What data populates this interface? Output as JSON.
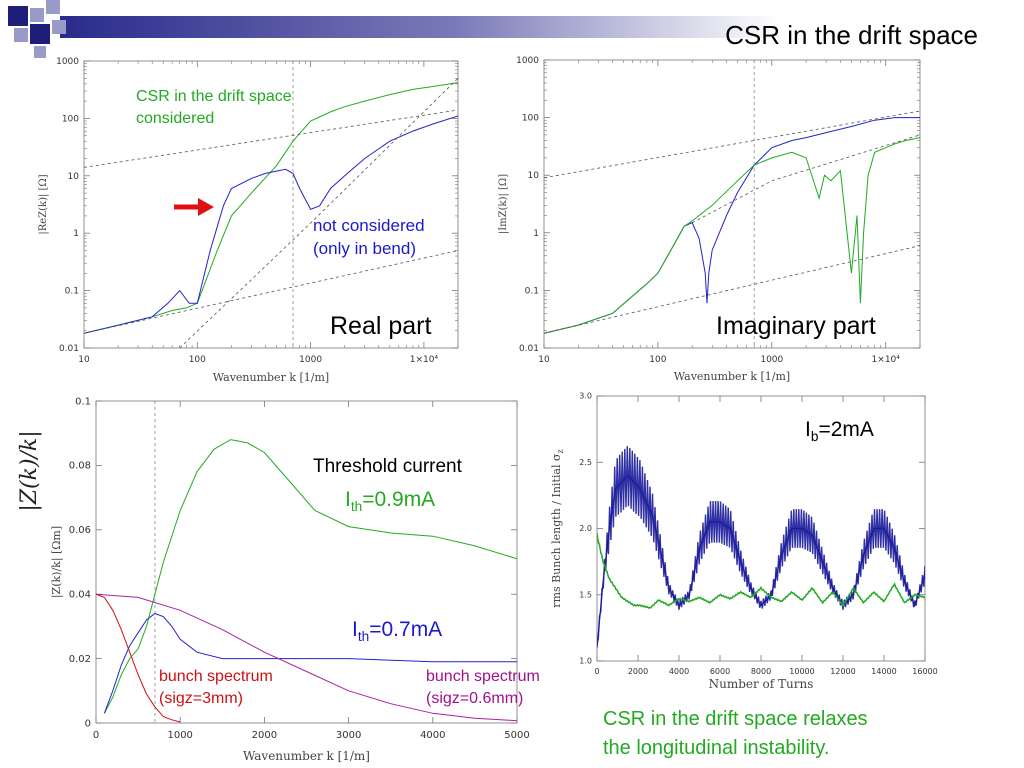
{
  "slide": {
    "title": "CSR in the drift space",
    "colors": {
      "header_bar": "#2a2a8c",
      "square_dark": "#1e1e7a",
      "square_light": "#9a9ac8"
    }
  },
  "chart_data": [
    {
      "type": "line",
      "id": "real",
      "xscale": "log",
      "yscale": "log",
      "xlim": [
        10,
        20000
      ],
      "ylim": [
        0.01,
        1000
      ],
      "xlabel": "Wavenumber  k [1/m]",
      "ylabel": "|ReZ(k)| [Ω]",
      "xticks": [
        {
          "v": 10,
          "t": "10"
        },
        {
          "v": 100,
          "t": "100"
        },
        {
          "v": 1000,
          "t": "1000"
        },
        {
          "v": 10000,
          "t": "1×10⁴"
        }
      ],
      "yticks": [
        {
          "v": 0.01,
          "t": "0.01"
        },
        {
          "v": 0.1,
          "t": "0.1"
        },
        {
          "v": 1,
          "t": "1"
        },
        {
          "v": 10,
          "t": "10"
        },
        {
          "v": 100,
          "t": "100"
        },
        {
          "v": 1000,
          "t": "1000"
        }
      ],
      "vline": 700,
      "panel_label": "Real part",
      "annotations": {
        "green": "CSR in the drift space\nconsidered",
        "blue": "not considered\n(only in bend)"
      },
      "series": [
        {
          "color": "#22aa22",
          "x": [
            10,
            20,
            40,
            60,
            80,
            100,
            150,
            200,
            300,
            500,
            700,
            1000,
            1500,
            2000,
            3000,
            5000,
            8000,
            12000,
            20000
          ],
          "y": [
            0.018,
            0.025,
            0.035,
            0.045,
            0.05,
            0.06,
            0.5,
            2,
            5,
            15,
            40,
            90,
            130,
            160,
            200,
            260,
            320,
            360,
            420
          ]
        },
        {
          "color": "#2222cc",
          "x": [
            10,
            20,
            40,
            55,
            70,
            85,
            100,
            130,
            170,
            200,
            300,
            400,
            600,
            700,
            800,
            1000,
            1200,
            1500,
            2000,
            3000,
            5000,
            8000,
            12000,
            20000
          ],
          "y": [
            0.018,
            0.025,
            0.035,
            0.06,
            0.1,
            0.06,
            0.06,
            0.5,
            3,
            6,
            9,
            11,
            13,
            11,
            6,
            2.6,
            3,
            6,
            10,
            20,
            40,
            60,
            80,
            110
          ]
        },
        {
          "color": "#555555",
          "dashed": true,
          "x": [
            10,
            20000
          ],
          "y": [
            14,
            140
          ]
        },
        {
          "color": "#555555",
          "dashed": true,
          "x": [
            10,
            20000
          ],
          "y": [
            0.018,
            0.5
          ]
        },
        {
          "color": "#555555",
          "dashed": true,
          "x": [
            70,
            1000,
            20000
          ],
          "y": [
            0.01,
            1.5,
            500
          ]
        }
      ]
    },
    {
      "type": "line",
      "id": "imag",
      "xscale": "log",
      "yscale": "log",
      "xlim": [
        10,
        20000
      ],
      "ylim": [
        0.01,
        1000
      ],
      "xlabel": "Wavenumber  k [1/m]",
      "ylabel": "|ImZ(k)| [Ω]",
      "xticks": [
        {
          "v": 10,
          "t": "10"
        },
        {
          "v": 100,
          "t": "100"
        },
        {
          "v": 1000,
          "t": "1000"
        },
        {
          "v": 10000,
          "t": "1×10⁴"
        }
      ],
      "yticks": [
        {
          "v": 0.01,
          "t": "0.01"
        },
        {
          "v": 0.1,
          "t": "0.1"
        },
        {
          "v": 1,
          "t": "1"
        },
        {
          "v": 10,
          "t": "10"
        },
        {
          "v": 100,
          "t": "100"
        },
        {
          "v": 1000,
          "t": "1000"
        }
      ],
      "vline": 700,
      "panel_label": "Imaginary part",
      "series": [
        {
          "color": "#2222cc",
          "x": [
            10,
            20,
            40,
            60,
            80,
            100,
            130,
            170,
            200,
            230,
            260,
            270,
            280,
            300,
            400,
            500,
            700,
            1000,
            1500,
            2000,
            3000,
            5000,
            8000,
            12000,
            20000
          ],
          "y": [
            0.018,
            0.025,
            0.04,
            0.08,
            0.13,
            0.2,
            0.5,
            1.3,
            1.5,
            0.8,
            0.2,
            0.06,
            0.2,
            0.5,
            2,
            5,
            15,
            30,
            40,
            45,
            55,
            70,
            90,
            100,
            100
          ]
        },
        {
          "color": "#22aa22",
          "x": [
            10,
            20,
            40,
            60,
            80,
            100,
            130,
            170,
            200,
            300,
            500,
            700,
            1000,
            1500,
            2000,
            2600,
            2900,
            3300,
            4000,
            5000,
            5600,
            6000,
            6400,
            7000,
            8000,
            10000,
            12000,
            15000,
            20000
          ],
          "y": [
            0.018,
            0.025,
            0.04,
            0.08,
            0.13,
            0.2,
            0.5,
            1.3,
            1.6,
            3,
            8,
            15,
            20,
            25,
            20,
            4,
            10,
            8,
            12,
            0.2,
            2,
            0.06,
            1,
            10,
            25,
            30,
            35,
            40,
            45
          ]
        },
        {
          "color": "#555555",
          "dashed": true,
          "x": [
            10,
            20000
          ],
          "y": [
            9,
            130
          ]
        },
        {
          "color": "#555555",
          "dashed": true,
          "x": [
            10,
            20000
          ],
          "y": [
            0.018,
            0.6
          ]
        },
        {
          "color": "#555555",
          "dashed": true,
          "x": [
            200,
            1000,
            20000
          ],
          "y": [
            1.5,
            8,
            50
          ]
        }
      ]
    },
    {
      "type": "line",
      "id": "zk",
      "xscale": "linear",
      "yscale": "linear",
      "xlim": [
        0,
        5000
      ],
      "ylim": [
        0,
        0.1
      ],
      "xlabel": "Wavenumber k [1/m]",
      "ylabel": "|Z(k)/k| [Ωm]",
      "ylabel_big": "|Z(k)/k|",
      "xticks": [
        {
          "v": 0,
          "t": "0"
        },
        {
          "v": 1000,
          "t": "1000"
        },
        {
          "v": 2000,
          "t": "2000"
        },
        {
          "v": 3000,
          "t": "3000"
        },
        {
          "v": 4000,
          "t": "4000"
        },
        {
          "v": 5000,
          "t": "5000"
        }
      ],
      "yticks": [
        {
          "v": 0,
          "t": "0"
        },
        {
          "v": 0.02,
          "t": "0.02"
        },
        {
          "v": 0.04,
          "t": "0.04"
        },
        {
          "v": 0.06,
          "t": "0.06"
        },
        {
          "v": 0.08,
          "t": "0.08"
        },
        {
          "v": 0.1,
          "t": "0.1"
        }
      ],
      "vline": 700,
      "annotations": {
        "threshold": "Threshold current",
        "ith_green_main": "I",
        "ith_green_sub": "th",
        "ith_green_val": "=0.9mA",
        "ith_blue_main": "I",
        "ith_blue_sub": "th",
        "ith_blue_val": "=0.7mA",
        "bunch_red": "bunch spectrum\n(sigz=3mm)",
        "bunch_magenta": "bunch spectrum\n(sigz=0.6mm)"
      },
      "series": [
        {
          "color": "#22aa22",
          "x": [
            100,
            200,
            300,
            400,
            500,
            600,
            700,
            800,
            1000,
            1200,
            1400,
            1600,
            1800,
            2000,
            2300,
            2600,
            3000,
            3500,
            4000,
            4500,
            5000
          ],
          "y": [
            0.003,
            0.008,
            0.015,
            0.02,
            0.023,
            0.03,
            0.04,
            0.05,
            0.066,
            0.078,
            0.085,
            0.088,
            0.087,
            0.084,
            0.075,
            0.066,
            0.061,
            0.059,
            0.058,
            0.055,
            0.051
          ]
        },
        {
          "color": "#2222cc",
          "x": [
            100,
            200,
            300,
            400,
            500,
            600,
            700,
            800,
            900,
            1000,
            1200,
            1500,
            2000,
            3000,
            4000,
            5000
          ],
          "y": [
            0.003,
            0.01,
            0.018,
            0.024,
            0.028,
            0.032,
            0.034,
            0.033,
            0.03,
            0.026,
            0.022,
            0.02,
            0.02,
            0.02,
            0.019,
            0.019
          ]
        },
        {
          "color": "#cc1111",
          "x": [
            0,
            100,
            200,
            300,
            400,
            500,
            600,
            700,
            800,
            900,
            1000
          ],
          "y": [
            0.04,
            0.039,
            0.035,
            0.029,
            0.022,
            0.015,
            0.009,
            0.005,
            0.002,
            0.001,
            0.0003
          ]
        },
        {
          "color": "#b020a0",
          "x": [
            0,
            500,
            1000,
            1500,
            2000,
            2500,
            3000,
            3500,
            4000,
            4500,
            5000
          ],
          "y": [
            0.04,
            0.039,
            0.035,
            0.029,
            0.022,
            0.016,
            0.01,
            0.006,
            0.003,
            0.0015,
            0.0007
          ]
        }
      ]
    },
    {
      "type": "line",
      "id": "bunch",
      "xscale": "linear",
      "yscale": "linear",
      "xlim": [
        0,
        16000
      ],
      "ylim": [
        1,
        3
      ],
      "xlabel": "Number of Turns",
      "ylabel": "rms Bunch length / Initial σ",
      "ylabel_sub": "z",
      "xticks": [
        {
          "v": 0,
          "t": "0"
        },
        {
          "v": 2000,
          "t": "2000"
        },
        {
          "v": 4000,
          "t": "4000"
        },
        {
          "v": 6000,
          "t": "6000"
        },
        {
          "v": 8000,
          "t": "8000"
        },
        {
          "v": 10000,
          "t": "10000"
        },
        {
          "v": 12000,
          "t": "12000"
        },
        {
          "v": 14000,
          "t": "14000"
        },
        {
          "v": 16000,
          "t": "16000"
        }
      ],
      "yticks": [
        {
          "v": 1,
          "t": "1.0"
        },
        {
          "v": 1.5,
          "t": "1.5"
        },
        {
          "v": 2,
          "t": "2.0"
        },
        {
          "v": 2.5,
          "t": "2.5"
        },
        {
          "v": 3,
          "t": "3.0"
        }
      ],
      "annotations": {
        "ib_main": "I",
        "ib_sub": "b",
        "ib_val": "=2mA",
        "conclusion": "CSR in the drift space relaxes\nthe longitudinal instability."
      },
      "series": [
        {
          "color": "#1a1a9a",
          "band": 0.45,
          "x": [
            0,
            300,
            600,
            900,
            1200,
            1500,
            1800,
            2100,
            2400,
            2700,
            3000,
            3500,
            4000,
            4500,
            5000,
            5500,
            6000,
            6500,
            7000,
            7500,
            8000,
            8500,
            9000,
            9500,
            10000,
            10500,
            11000,
            11500,
            12000,
            12500,
            13000,
            13500,
            14000,
            14500,
            15000,
            15500,
            16000
          ],
          "y": [
            1.1,
            1.6,
            2.0,
            2.3,
            2.35,
            2.4,
            2.35,
            2.3,
            2.2,
            2.1,
            1.9,
            1.55,
            1.42,
            1.5,
            1.85,
            2.05,
            2.05,
            2.0,
            1.75,
            1.55,
            1.42,
            1.5,
            1.8,
            2.0,
            2.0,
            1.95,
            1.75,
            1.55,
            1.42,
            1.5,
            1.8,
            2.0,
            2.0,
            1.85,
            1.6,
            1.42,
            1.65
          ]
        },
        {
          "color": "#22aa22",
          "band": 0.06,
          "x": [
            0,
            300,
            600,
            900,
            1200,
            1500,
            1800,
            2100,
            2600,
            3000,
            3500,
            4000,
            4500,
            5000,
            5500,
            6000,
            6500,
            7000,
            7500,
            8000,
            8500,
            9000,
            9500,
            10000,
            10500,
            11000,
            11500,
            12000,
            12500,
            13000,
            13500,
            14000,
            14500,
            15000,
            15500,
            16000
          ],
          "y": [
            1.95,
            1.75,
            1.62,
            1.55,
            1.48,
            1.45,
            1.42,
            1.42,
            1.4,
            1.46,
            1.42,
            1.47,
            1.45,
            1.48,
            1.44,
            1.5,
            1.47,
            1.52,
            1.48,
            1.55,
            1.48,
            1.45,
            1.52,
            1.46,
            1.55,
            1.44,
            1.52,
            1.42,
            1.55,
            1.44,
            1.52,
            1.45,
            1.58,
            1.44,
            1.5,
            1.48
          ]
        }
      ]
    }
  ]
}
